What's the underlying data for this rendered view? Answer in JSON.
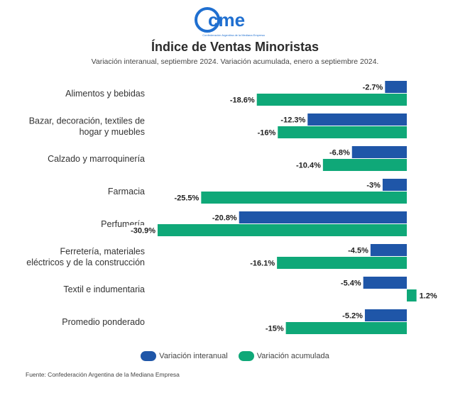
{
  "header": {
    "logo_text": "cme",
    "logo_tagline": "Confederación Argentina de la Mediana Empresa",
    "title": "Índice de Ventas Minoristas",
    "subtitle": "Variación interanual, septiembre 2024. Variación acumulada, enero a septiembre 2024."
  },
  "colors": {
    "interanual": "#1f56a8",
    "acumulada": "#0fa878",
    "logo": "#1f6fd0"
  },
  "chart_data": {
    "type": "bar",
    "orientation": "horizontal",
    "categories": [
      [
        "Alimentos y bebidas"
      ],
      [
        "Bazar, decoración, textiles de",
        "hogar y muebles"
      ],
      [
        "Calzado y marroquinería"
      ],
      [
        "Farmacia"
      ],
      [
        "Perfumería"
      ],
      [
        "Ferretería, materiales",
        "eléctricos y de la construcción"
      ],
      [
        "Textil e indumentaria"
      ],
      [
        "Promedio ponderado"
      ]
    ],
    "series": [
      {
        "name": "Variación interanual",
        "values": [
          -2.7,
          -12.3,
          -6.8,
          -3,
          -20.8,
          -4.5,
          -5.4,
          -5.2
        ],
        "labels": [
          "-2.7%",
          "-12.3%",
          "-6.8%",
          "-3%",
          "-20.8%",
          "-4.5%",
          "-5.4%",
          "-5.2%"
        ]
      },
      {
        "name": "Variación acumulada",
        "values": [
          -18.6,
          -16,
          -10.4,
          -25.5,
          -30.9,
          -16.1,
          1.2,
          -15
        ],
        "labels": [
          "-18.6%",
          "-16%",
          "-10.4%",
          "-25.5%",
          "-30.9%",
          "-16.1%",
          "1.2%",
          "-15%"
        ]
      }
    ],
    "legend_position": "bottom",
    "grid": false,
    "xlim": [
      -31,
      3
    ]
  },
  "legend": {
    "interanual": "Variación interanual",
    "acumulada": "Variación acumulada"
  },
  "footer": {
    "source": "Fuente: Confederación Argentina de la Mediana Empresa"
  }
}
